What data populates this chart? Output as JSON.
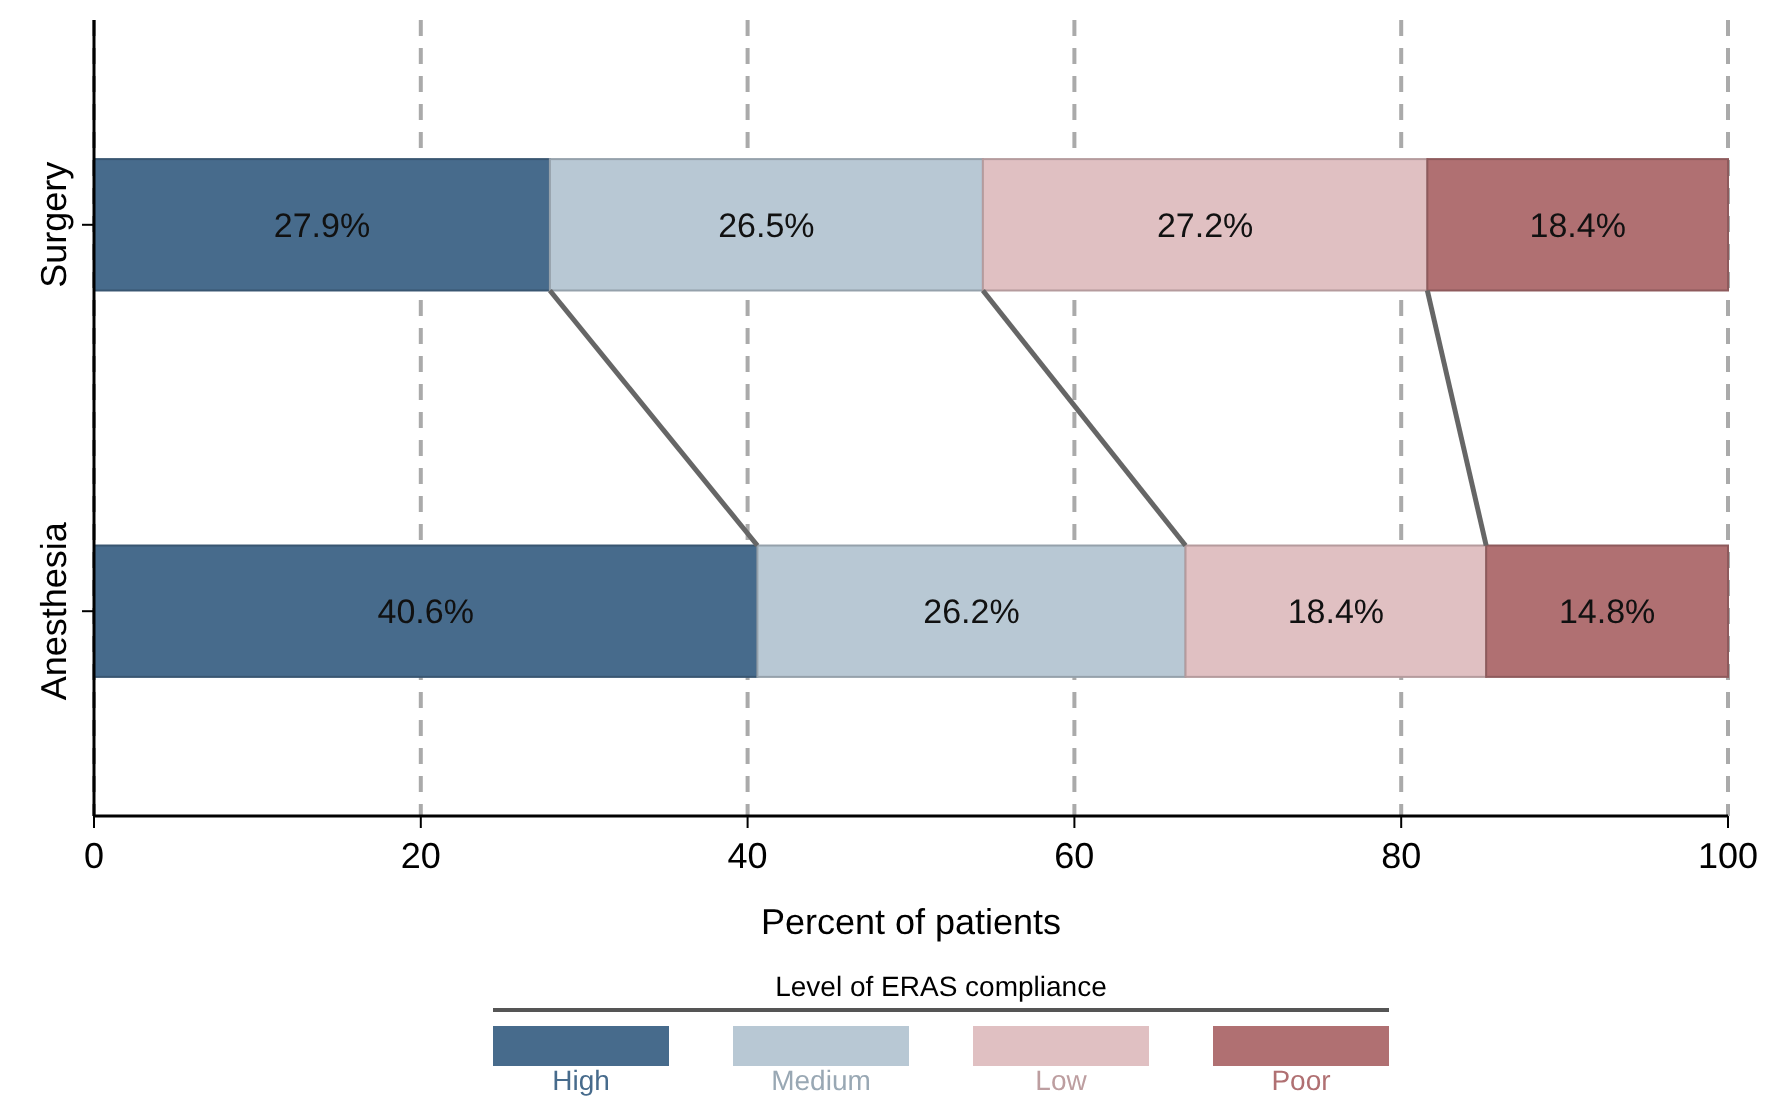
{
  "chart_data": {
    "type": "bar",
    "orientation": "horizontal",
    "stacked": true,
    "categories": [
      "Surgery",
      "Anesthesia"
    ],
    "series": [
      {
        "name": "High",
        "color": "#476b8c",
        "values": [
          27.9,
          40.6
        ],
        "value_labels": [
          "27.9%",
          "40.6%"
        ]
      },
      {
        "name": "Medium",
        "color": "#b8c8d4",
        "values": [
          26.5,
          26.2
        ],
        "value_labels": [
          "26.5%",
          "26.2%"
        ]
      },
      {
        "name": "Low",
        "color": "#e0c0c2",
        "values": [
          27.2,
          18.4
        ],
        "value_labels": [
          "27.2%",
          "18.4%"
        ]
      },
      {
        "name": "Poor",
        "color": "#b07072",
        "values": [
          18.4,
          14.8
        ],
        "value_labels": [
          "18.4%",
          "14.8%"
        ]
      }
    ],
    "xlim": [
      0,
      100
    ],
    "xticks": [
      0,
      20,
      40,
      60,
      80,
      100
    ],
    "xlabel": "Percent of patients",
    "legend_title": "Level of ERAS compliance",
    "legend": "bottom",
    "grid": "x"
  }
}
